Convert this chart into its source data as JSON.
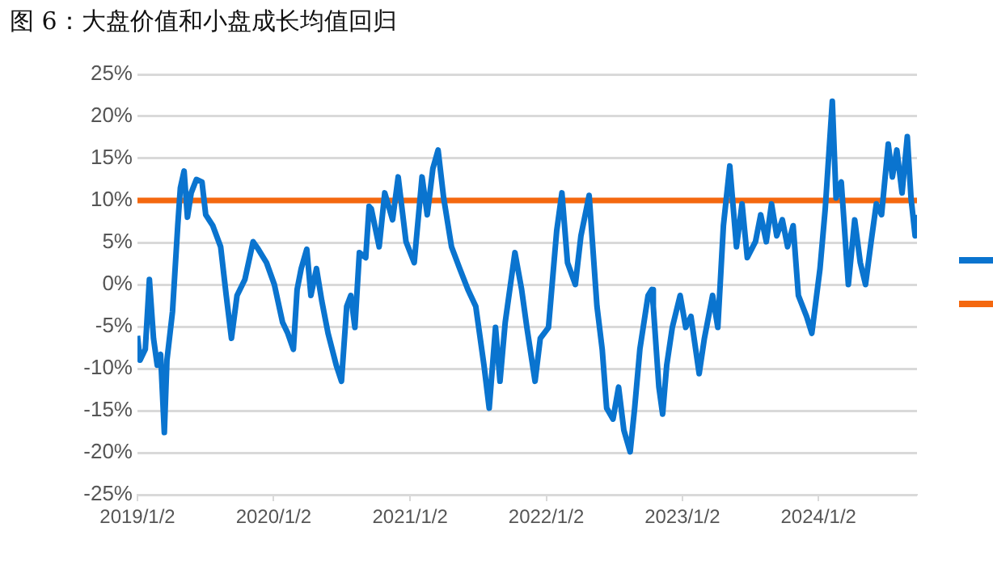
{
  "chart_data": {
    "type": "line",
    "title": "图 6：大盘价值和小盘成长均值回归",
    "xlim": [
      "2019-01-02",
      "2024-09-22"
    ],
    "xticks": [
      {
        "value": "2019-01-02",
        "label": "2019/1/2"
      },
      {
        "value": "2020-01-02",
        "label": "2020/1/2"
      },
      {
        "value": "2021-01-02",
        "label": "2021/1/2"
      },
      {
        "value": "2022-01-02",
        "label": "2022/1/2"
      },
      {
        "value": "2023-01-02",
        "label": "2023/1/2"
      },
      {
        "value": "2024-01-02",
        "label": "2024/1/2"
      }
    ],
    "ylim": [
      -25,
      25
    ],
    "yticks": [
      {
        "value": -25,
        "label": "-25%"
      },
      {
        "value": -20,
        "label": "-20%"
      },
      {
        "value": -15,
        "label": "-15%"
      },
      {
        "value": -10,
        "label": "-10%"
      },
      {
        "value": -5,
        "label": "-5%"
      },
      {
        "value": 0,
        "label": "0%"
      },
      {
        "value": 5,
        "label": "5%"
      },
      {
        "value": 10,
        "label": "10%"
      },
      {
        "value": 15,
        "label": "15%"
      },
      {
        "value": 20,
        "label": "20%"
      },
      {
        "value": 25,
        "label": "25%"
      }
    ],
    "grid": "y",
    "marker": "none",
    "line_style": "solid",
    "series": [
      {
        "color": "#0a74cf",
        "x": [
          "2019-01-02",
          "2019-01-09",
          "2019-01-23",
          "2019-02-03",
          "2019-02-14",
          "2019-02-24",
          "2019-03-05",
          "2019-03-15",
          "2019-03-22",
          "2019-04-06",
          "2019-04-20",
          "2019-04-27",
          "2019-05-07",
          "2019-05-16",
          "2019-05-26",
          "2019-06-09",
          "2019-06-24",
          "2019-07-04",
          "2019-07-23",
          "2019-08-13",
          "2019-08-28",
          "2019-09-11",
          "2019-09-26",
          "2019-10-17",
          "2019-11-08",
          "2019-11-22",
          "2019-12-14",
          "2020-01-04",
          "2020-01-26",
          "2020-02-09",
          "2020-02-24",
          "2020-03-05",
          "2020-03-16",
          "2020-03-31",
          "2020-04-11",
          "2020-04-26",
          "2020-05-10",
          "2020-05-27",
          "2020-06-18",
          "2020-07-02",
          "2020-07-16",
          "2020-07-27",
          "2020-08-07",
          "2020-08-19",
          "2020-09-05",
          "2020-09-14",
          "2020-09-20",
          "2020-10-11",
          "2020-10-26",
          "2020-11-16",
          "2020-12-01",
          "2020-12-22",
          "2021-01-13",
          "2021-02-03",
          "2021-02-17",
          "2021-03-04",
          "2021-03-18",
          "2021-04-02",
          "2021-04-23",
          "2021-05-15",
          "2021-06-06",
          "2021-06-27",
          "2021-07-19",
          "2021-08-02",
          "2021-08-19",
          "2021-08-31",
          "2021-09-14",
          "2021-10-10",
          "2021-10-28",
          "2021-11-11",
          "2021-12-03",
          "2021-12-17",
          "2022-01-08",
          "2022-01-30",
          "2022-02-13",
          "2022-02-28",
          "2022-03-21",
          "2022-04-05",
          "2022-04-27",
          "2022-05-18",
          "2022-06-01",
          "2022-06-13",
          "2022-06-30",
          "2022-07-15",
          "2022-07-29",
          "2022-08-15",
          "2022-08-27",
          "2022-09-10",
          "2022-10-02",
          "2022-10-12",
          "2022-10-16",
          "2022-10-31",
          "2022-11-10",
          "2022-11-21",
          "2022-12-06",
          "2022-12-27",
          "2023-01-11",
          "2023-01-25",
          "2023-02-16",
          "2023-03-02",
          "2023-03-24",
          "2023-04-07",
          "2023-04-22",
          "2023-05-09",
          "2023-05-27",
          "2023-06-11",
          "2023-06-25",
          "2023-07-17",
          "2023-07-31",
          "2023-08-15",
          "2023-08-29",
          "2023-09-12",
          "2023-09-27",
          "2023-10-11",
          "2023-10-26",
          "2023-11-09",
          "2023-12-01",
          "2023-12-15",
          "2024-01-06",
          "2024-01-20",
          "2024-02-08",
          "2024-02-18",
          "2024-03-03",
          "2024-03-22",
          "2024-04-08",
          "2024-04-23",
          "2024-05-07",
          "2024-05-22",
          "2024-06-05",
          "2024-06-19",
          "2024-07-07",
          "2024-07-18",
          "2024-07-30",
          "2024-08-13",
          "2024-08-27",
          "2024-09-06",
          "2024-09-17",
          "2024-09-22"
        ],
        "values": [
          -6.1,
          -9,
          -7.7,
          0.6,
          -6.4,
          -9.6,
          -8.3,
          -17.6,
          -9,
          -3.2,
          7,
          11.5,
          13.5,
          8,
          10.9,
          12.5,
          12.2,
          8.3,
          7,
          4.5,
          -1.3,
          -6.4,
          -1.3,
          0.6,
          5.1,
          4.2,
          2.6,
          0,
          -4.5,
          -5.8,
          -7.7,
          -0.6,
          1.9,
          4.2,
          -1.3,
          1.9,
          -1.9,
          -5.8,
          -9.6,
          -11.5,
          -2.6,
          -1.3,
          -5.1,
          3.8,
          3.2,
          9.3,
          9,
          4.5,
          10.9,
          7.7,
          12.8,
          5.1,
          2.6,
          12.8,
          8.3,
          13.8,
          16,
          10.3,
          4.5,
          1.9,
          -0.6,
          -2.6,
          -9.6,
          -14.7,
          -5.1,
          -11.5,
          -4.5,
          3.8,
          -0.6,
          -5.1,
          -11.5,
          -6.4,
          -5.1,
          6.4,
          10.9,
          2.6,
          0,
          5.8,
          10.6,
          -2.6,
          -7.7,
          -14.7,
          -16,
          -12.2,
          -17.3,
          -19.9,
          -14.7,
          -7.7,
          -1.3,
          -0.6,
          -2.6,
          -12.2,
          -15.4,
          -9.6,
          -5.1,
          -1.3,
          -5.1,
          -3.8,
          -10.6,
          -6.4,
          -1.3,
          -5.1,
          7,
          14.1,
          4.5,
          9.6,
          3.2,
          5.1,
          8.3,
          5.1,
          9.6,
          5.8,
          7.7,
          4.5,
          7,
          -1.3,
          -3.8,
          -5.8,
          1.9,
          9,
          21.8,
          10.3,
          12.2,
          0,
          7.7,
          2.6,
          0,
          5.1,
          9.6,
          8.3,
          16.7,
          12.8,
          16,
          10.9,
          17.6,
          10.3,
          5.8,
          8.3
        ]
      },
      {
        "color": "#f4680f",
        "x": [
          "2019-01-02",
          "2024-09-22"
        ],
        "values": [
          10,
          10
        ]
      }
    ]
  }
}
